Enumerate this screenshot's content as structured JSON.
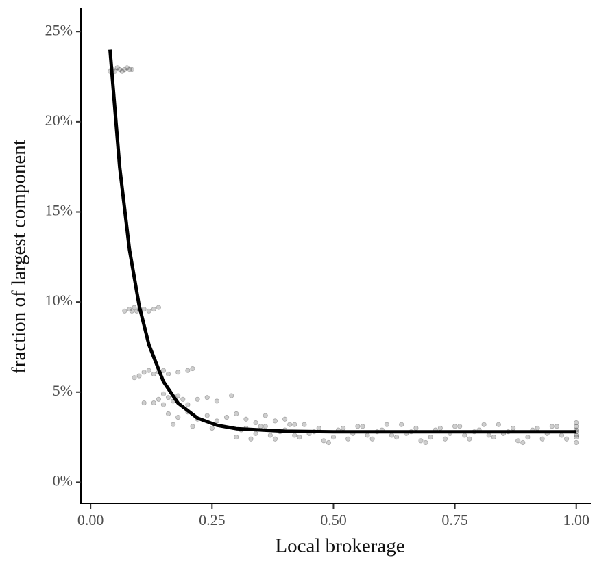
{
  "chart_data": {
    "type": "scatter",
    "x_label": "Local brokerage",
    "y_label": "fraction of largest component",
    "xlim": [
      -0.02,
      1.03
    ],
    "ylim": [
      -1.2,
      26.3
    ],
    "xticks": [
      {
        "value": 0,
        "label": "0.00"
      },
      0.25,
      {
        "value": 0.5,
        "label": "0.50"
      },
      0.75,
      {
        "value": 1,
        "label": "1.00"
      }
    ],
    "yticks": [
      {
        "value": 0,
        "label": "0%"
      },
      {
        "value": 5,
        "label": "5%"
      },
      {
        "value": 10,
        "label": "10%"
      },
      {
        "value": 15,
        "label": "15%"
      },
      {
        "value": 20,
        "label": "20%"
      },
      {
        "value": 25,
        "label": "25%"
      }
    ],
    "points": {
      "color": "#222222",
      "x": [
        0.04,
        0.045,
        0.05,
        0.055,
        0.06,
        0.065,
        0.07,
        0.075,
        0.08,
        0.085,
        0.07,
        0.08,
        0.09,
        0.095,
        0.1,
        0.11,
        0.12,
        0.13,
        0.14,
        0.085,
        0.1,
        0.11,
        0.12,
        0.13,
        0.14,
        0.15,
        0.16,
        0.18,
        0.2,
        0.21,
        0.09,
        0.13,
        0.14,
        0.15,
        0.16,
        0.17,
        0.18,
        0.19,
        0.2,
        0.22,
        0.24,
        0.26,
        0.29,
        0.11,
        0.15,
        0.16,
        0.18,
        0.2,
        0.22,
        0.24,
        0.26,
        0.28,
        0.3,
        0.32,
        0.34,
        0.36,
        0.38,
        0.4,
        0.42,
        0.17,
        0.21,
        0.25,
        0.3,
        0.32,
        0.34,
        0.36,
        0.38,
        0.4,
        0.42,
        0.44,
        0.46,
        0.48,
        0.5,
        0.52,
        0.54,
        0.56,
        0.58,
        0.6,
        0.62,
        0.64,
        0.66,
        0.68,
        0.7,
        0.72,
        0.74,
        0.76,
        0.78,
        0.8,
        0.82,
        0.84,
        0.86,
        0.88,
        0.9,
        0.92,
        0.94,
        0.96,
        0.98,
        0.31,
        0.33,
        0.35,
        0.37,
        0.39,
        0.41,
        0.43,
        0.45,
        0.47,
        0.49,
        0.51,
        0.53,
        0.55,
        0.57,
        0.59,
        0.61,
        0.63,
        0.65,
        0.67,
        0.69,
        0.71,
        0.73,
        0.75,
        0.77,
        0.79,
        0.81,
        0.83,
        0.85,
        0.87,
        0.89,
        0.91,
        0.93,
        0.95,
        0.97,
        1,
        1,
        1,
        1,
        1,
        1,
        1
      ],
      "y": [
        22.8,
        22.9,
        22.8,
        23.0,
        22.9,
        22.8,
        22.9,
        23.0,
        22.9,
        22.9,
        9.5,
        9.6,
        9.7,
        9.5,
        9.6,
        9.6,
        9.5,
        9.6,
        9.7,
        9.5,
        5.9,
        6.1,
        6.2,
        6.0,
        6.1,
        6.2,
        6.0,
        6.1,
        6.2,
        6.3,
        5.8,
        4.4,
        4.6,
        4.9,
        4.7,
        4.5,
        4.8,
        4.6,
        4.3,
        4.6,
        4.7,
        4.5,
        4.8,
        4.4,
        4.3,
        3.8,
        3.6,
        3.9,
        3.5,
        3.7,
        3.4,
        3.6,
        3.8,
        3.5,
        3.3,
        3.7,
        3.4,
        3.5,
        3.2,
        3.2,
        3.1,
        3.0,
        2.5,
        3.0,
        2.7,
        3.1,
        2.4,
        2.9,
        2.6,
        3.2,
        2.8,
        2.3,
        2.5,
        3.0,
        2.7,
        3.1,
        2.4,
        2.9,
        2.6,
        3.2,
        2.8,
        2.3,
        2.5,
        3.0,
        2.7,
        3.1,
        2.4,
        2.9,
        2.6,
        3.2,
        2.8,
        2.3,
        2.5,
        3.0,
        2.7,
        3.1,
        2.4,
        2.9,
        2.4,
        3.1,
        2.6,
        2.8,
        3.2,
        2.5,
        2.7,
        3.0,
        2.2,
        2.9,
        2.4,
        3.1,
        2.6,
        2.8,
        3.2,
        2.5,
        2.7,
        3.0,
        2.2,
        2.9,
        2.4,
        3.1,
        2.6,
        2.8,
        3.2,
        2.5,
        2.7,
        3.0,
        2.2,
        2.9,
        2.4,
        3.1,
        2.6,
        2.2,
        2.5,
        2.8,
        3.1,
        3.3,
        2.6,
        2.9
      ]
    },
    "fit": {
      "color": "#000000",
      "x": [
        0.04,
        0.06,
        0.08,
        0.1,
        0.12,
        0.15,
        0.18,
        0.22,
        0.26,
        0.3,
        0.4,
        0.5,
        0.75,
        1
      ],
      "y": [
        24.0,
        17.45,
        12.91,
        9.8,
        7.63,
        5.58,
        4.39,
        3.56,
        3.16,
        2.97,
        2.83,
        2.8,
        2.8,
        2.8
      ]
    }
  }
}
